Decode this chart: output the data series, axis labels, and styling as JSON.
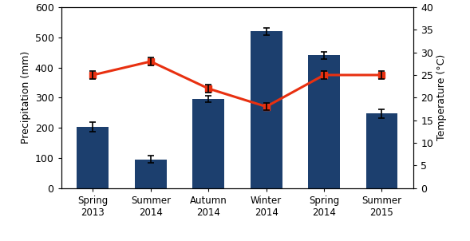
{
  "categories": [
    "Spring\n2013",
    "Summer\n2014",
    "Autumn\n2014",
    "Winter\n2014",
    "Spring\n2014",
    "Summer\n2015"
  ],
  "precip_values": [
    203,
    95,
    295,
    520,
    440,
    247
  ],
  "precip_errors": [
    15,
    12,
    10,
    12,
    12,
    15
  ],
  "temp_values": [
    25,
    28,
    22,
    18,
    25,
    25
  ],
  "temp_errors": [
    0.8,
    0.8,
    0.8,
    0.8,
    0.8,
    0.8
  ],
  "bar_color": "#1c3f6e",
  "line_color": "#e83010",
  "precip_ylim": [
    0,
    600
  ],
  "temp_ylim": [
    0,
    40
  ],
  "precip_yticks": [
    0,
    100,
    200,
    300,
    400,
    500,
    600
  ],
  "temp_yticks": [
    0,
    5,
    10,
    15,
    20,
    25,
    30,
    35,
    40
  ],
  "ylabel_left": "Precipitation (mm)",
  "ylabel_right": "Temperature (°C)",
  "bar_width": 0.55,
  "marker": "s",
  "marker_size": 6,
  "line_width": 2.2,
  "error_capsize": 3,
  "error_linewidth": 1.2,
  "figwidth": 5.89,
  "figheight": 3.02,
  "dpi": 100
}
